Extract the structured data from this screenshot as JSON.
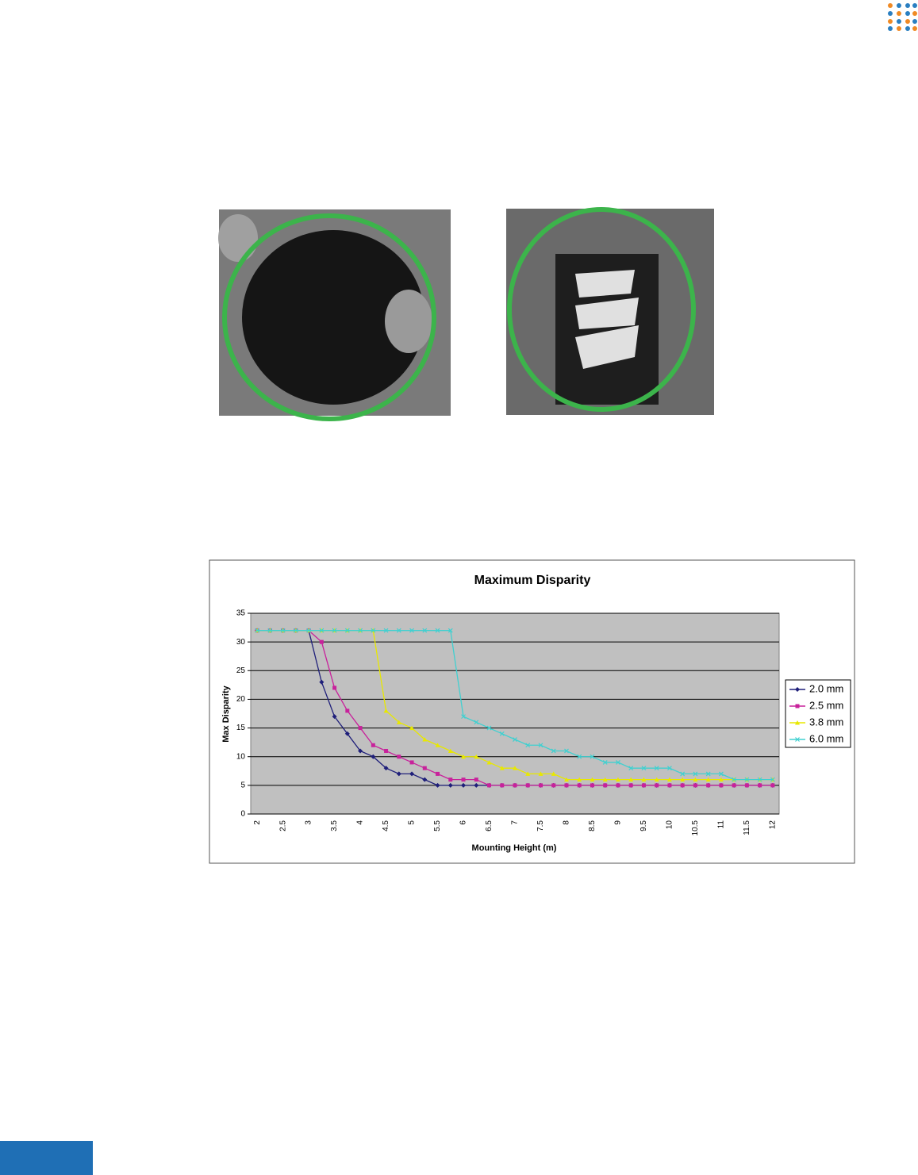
{
  "chart_data": {
    "type": "line",
    "title": "Maximum Disparity",
    "x_label": "Mounting Height (m)",
    "y_label": "Max Disparity",
    "categories": [
      "2",
      null,
      "2.5",
      null,
      "3",
      null,
      "3.5",
      null,
      "4",
      null,
      "4.5",
      null,
      "5",
      null,
      "5.5",
      null,
      "6",
      null,
      "6.5",
      null,
      "7",
      null,
      "7.5",
      null,
      "8",
      null,
      "8.5",
      null,
      "9",
      null,
      "9.5",
      null,
      "10",
      null,
      "10.5",
      null,
      "11",
      null,
      "11.5",
      null,
      "12"
    ],
    "series": [
      {
        "name": "2.0 mm",
        "color": "#1f1f7a",
        "marker": "diamond",
        "values": [
          32,
          32,
          32,
          32,
          32,
          23,
          17,
          14,
          11,
          10,
          8,
          7,
          7,
          6,
          5,
          5,
          5,
          5,
          5,
          5,
          5,
          5,
          5,
          5,
          5,
          5,
          5,
          5,
          5,
          5,
          5,
          5,
          5,
          5,
          5,
          5,
          5,
          5,
          5,
          5,
          5
        ]
      },
      {
        "name": "2.5 mm",
        "color": "#c8229b",
        "marker": "square",
        "values": [
          32,
          32,
          32,
          32,
          32,
          30,
          22,
          18,
          15,
          12,
          11,
          10,
          9,
          8,
          7,
          6,
          6,
          6,
          5,
          5,
          5,
          5,
          5,
          5,
          5,
          5,
          5,
          5,
          5,
          5,
          5,
          5,
          5,
          5,
          5,
          5,
          5,
          5,
          5,
          5,
          5
        ]
      },
      {
        "name": "3.8 mm",
        "color": "#e8e800",
        "marker": "triangle",
        "values": [
          32,
          32,
          32,
          32,
          32,
          32,
          32,
          32,
          32,
          32,
          18,
          16,
          15,
          13,
          12,
          11,
          10,
          10,
          9,
          8,
          8,
          7,
          7,
          7,
          6,
          6,
          6,
          6,
          6,
          6,
          6,
          6,
          6,
          6,
          6,
          6,
          6,
          6,
          6,
          6,
          6
        ]
      },
      {
        "name": "6.0 mm",
        "color": "#40d0d0",
        "marker": "cross",
        "values": [
          32,
          32,
          32,
          32,
          32,
          32,
          32,
          32,
          32,
          32,
          32,
          32,
          32,
          32,
          32,
          32,
          17,
          16,
          15,
          14,
          13,
          12,
          12,
          11,
          11,
          10,
          10,
          9,
          9,
          8,
          8,
          8,
          8,
          7,
          7,
          7,
          7,
          6,
          6,
          6,
          6
        ]
      }
    ],
    "ylim": [
      0,
      35
    ],
    "yticks": [
      0,
      5,
      10,
      15,
      20,
      25,
      30,
      35
    ],
    "grid": true,
    "legend": "right",
    "plot_background": "#c0c0c0"
  }
}
